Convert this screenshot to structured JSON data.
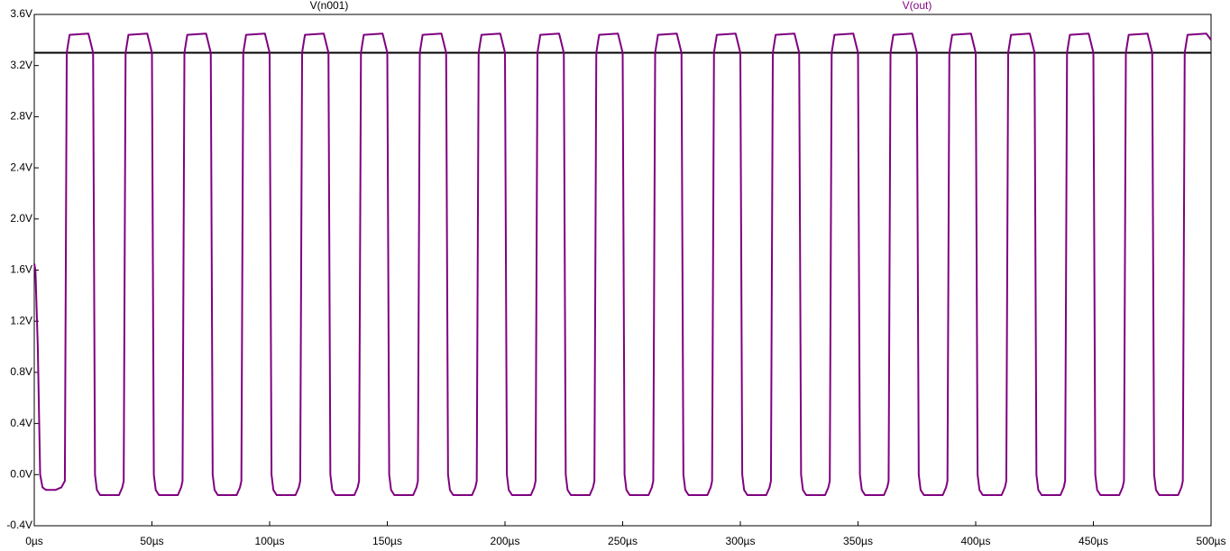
{
  "chart_data": {
    "type": "line",
    "series": [
      {
        "name": "V(n001)",
        "color": "#000000",
        "x": [
          0,
          500
        ],
        "values": [
          3.3,
          3.3
        ]
      },
      {
        "name": "V(out)",
        "color": "#7f007f",
        "x": [
          0,
          0.5,
          1.5,
          2.5,
          3.5,
          5,
          9,
          11.5,
          13,
          13.8,
          15,
          23,
          25,
          25.8,
          26.6,
          28,
          36,
          37.4,
          38,
          38.8,
          40,
          48,
          50,
          50.8,
          51.6,
          53,
          61,
          62.4,
          63,
          63.8,
          65,
          73,
          75,
          75.8,
          76.6,
          78,
          86,
          87.4,
          88,
          88.8,
          90,
          98,
          100,
          100.8,
          101.6,
          103,
          111,
          112.4,
          113,
          113.8,
          115,
          123,
          125,
          125.8,
          126.6,
          128,
          136,
          137.4,
          138,
          138.8,
          140,
          148,
          150,
          150.8,
          151.6,
          153,
          161,
          162.4,
          163,
          163.8,
          165,
          173,
          175,
          175.8,
          176.6,
          178,
          186,
          187.4,
          188,
          188.8,
          190,
          198,
          200,
          200.8,
          201.6,
          203,
          211,
          212.4,
          213,
          213.8,
          215,
          223,
          225,
          225.8,
          226.6,
          228,
          236,
          237.4,
          238,
          238.8,
          240,
          248,
          250,
          250.8,
          251.6,
          253,
          261,
          262.4,
          263,
          263.8,
          265,
          273,
          275,
          275.8,
          276.6,
          278,
          286,
          287.4,
          288,
          288.8,
          290,
          298,
          300,
          300.8,
          301.6,
          303,
          311,
          312.4,
          313,
          313.8,
          315,
          323,
          325,
          325.8,
          326.6,
          328,
          336,
          337.4,
          338,
          338.8,
          340,
          348,
          350,
          350.8,
          351.6,
          353,
          361,
          362.4,
          363,
          363.8,
          365,
          373,
          375,
          375.8,
          376.6,
          378,
          386,
          387.4,
          388,
          388.8,
          390,
          398,
          400,
          400.8,
          401.6,
          403,
          411,
          412.4,
          413,
          413.8,
          415,
          423,
          425,
          425.8,
          426.6,
          428,
          436,
          437.4,
          438,
          438.8,
          440,
          448,
          450,
          450.8,
          451.6,
          453,
          461,
          462.4,
          463,
          463.8,
          465,
          473,
          475,
          475.8,
          476.6,
          478,
          486,
          487.4,
          488,
          488.8,
          490,
          498,
          500
        ],
        "values": [
          1.65,
          1.6,
          1.0,
          0,
          -0.1,
          -0.12,
          -0.12,
          -0.1,
          -0.05,
          3.3,
          3.44,
          3.45,
          3.3,
          0,
          -0.12,
          -0.16,
          -0.16,
          -0.1,
          -0.05,
          3.3,
          3.44,
          3.45,
          3.3,
          0,
          -0.12,
          -0.16,
          -0.16,
          -0.1,
          -0.05,
          3.3,
          3.44,
          3.45,
          3.3,
          0,
          -0.12,
          -0.16,
          -0.16,
          -0.1,
          -0.05,
          3.3,
          3.44,
          3.45,
          3.3,
          0,
          -0.12,
          -0.16,
          -0.16,
          -0.1,
          -0.05,
          3.3,
          3.44,
          3.45,
          3.3,
          0,
          -0.12,
          -0.16,
          -0.16,
          -0.1,
          -0.05,
          3.3,
          3.44,
          3.45,
          3.3,
          0,
          -0.12,
          -0.16,
          -0.16,
          -0.1,
          -0.05,
          3.3,
          3.44,
          3.45,
          3.3,
          0,
          -0.12,
          -0.16,
          -0.16,
          -0.1,
          -0.05,
          3.3,
          3.44,
          3.45,
          3.3,
          0,
          -0.12,
          -0.16,
          -0.16,
          -0.1,
          -0.05,
          3.3,
          3.44,
          3.45,
          3.3,
          0,
          -0.12,
          -0.16,
          -0.16,
          -0.1,
          -0.05,
          3.3,
          3.44,
          3.45,
          3.3,
          0,
          -0.12,
          -0.16,
          -0.16,
          -0.1,
          -0.05,
          3.3,
          3.44,
          3.45,
          3.3,
          0,
          -0.12,
          -0.16,
          -0.16,
          -0.1,
          -0.05,
          3.3,
          3.44,
          3.45,
          3.3,
          0,
          -0.12,
          -0.16,
          -0.16,
          -0.1,
          -0.05,
          3.3,
          3.44,
          3.45,
          3.3,
          0,
          -0.12,
          -0.16,
          -0.16,
          -0.1,
          -0.05,
          3.3,
          3.44,
          3.45,
          3.3,
          0,
          -0.12,
          -0.16,
          -0.16,
          -0.1,
          -0.05,
          3.3,
          3.44,
          3.45,
          3.3,
          0,
          -0.12,
          -0.16,
          -0.16,
          -0.1,
          -0.05,
          3.3,
          3.44,
          3.45,
          3.3,
          0,
          -0.12,
          -0.16,
          -0.16,
          -0.1,
          -0.05,
          3.3,
          3.44,
          3.45,
          3.3,
          0,
          -0.12,
          -0.16,
          -0.16,
          -0.1,
          -0.05,
          3.3,
          3.44,
          3.45,
          3.3,
          0,
          -0.12,
          -0.16,
          -0.16,
          -0.1,
          -0.05,
          3.3,
          3.44,
          3.45,
          3.3,
          0,
          -0.12,
          -0.16,
          -0.16,
          -0.1,
          -0.05,
          3.3,
          3.44,
          3.45,
          3.4
        ]
      }
    ],
    "xlim": [
      0,
      500
    ],
    "xticks": [
      {
        "value": 0,
        "label": "0µs"
      },
      {
        "value": 50,
        "label": "50µs"
      },
      {
        "value": 100,
        "label": "100µs"
      },
      {
        "value": 150,
        "label": "150µs"
      },
      {
        "value": 200,
        "label": "200µs"
      },
      {
        "value": 250,
        "label": "250µs"
      },
      {
        "value": 300,
        "label": "300µs"
      },
      {
        "value": 350,
        "label": "350µs"
      },
      {
        "value": 400,
        "label": "400µs"
      },
      {
        "value": 450,
        "label": "450µs"
      },
      {
        "value": 500,
        "label": "500µs"
      }
    ],
    "ylim": [
      -0.4,
      3.6
    ],
    "yticks": [
      {
        "value": -0.4,
        "label": "-0.4V"
      },
      {
        "value": 0,
        "label": "0.0V"
      },
      {
        "value": 0.4,
        "label": "0.4V"
      },
      {
        "value": 0.8,
        "label": "0.8V"
      },
      {
        "value": 1.2,
        "label": "1.2V"
      },
      {
        "value": 1.6,
        "label": "1.6V"
      },
      {
        "value": 2.0,
        "label": "2.0V"
      },
      {
        "value": 2.4,
        "label": "2.4V"
      },
      {
        "value": 2.8,
        "label": "2.8V"
      },
      {
        "value": 3.2,
        "label": "3.2V"
      },
      {
        "value": 3.6,
        "label": "3.6V"
      }
    ],
    "grid": false
  }
}
